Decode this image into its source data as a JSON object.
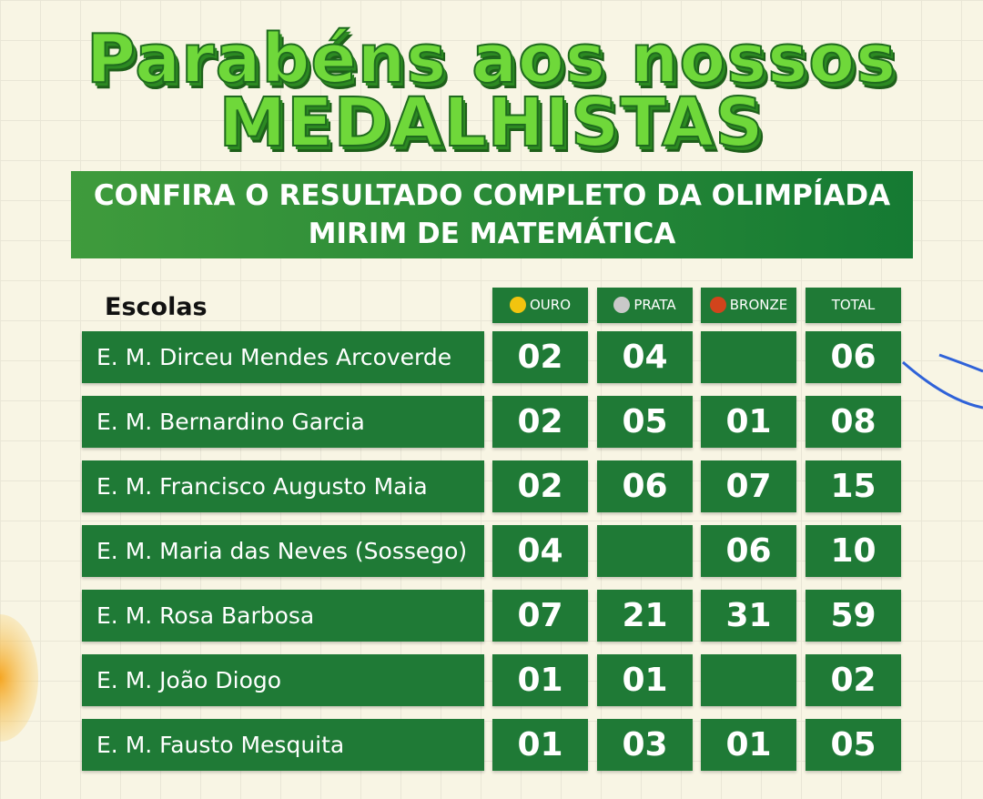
{
  "header": {
    "title_lines": [
      "Parabéns  aos nossos",
      "MEDALHISTAS"
    ],
    "banner_lines": [
      "CONFIRA O RESULTADO COMPLETO DA OLIMPÍADA",
      "MIRIM DE MATEMÁTICA"
    ]
  },
  "table": {
    "row_header": "Escolas",
    "columns": [
      {
        "label": "OURO",
        "dot": "#f2c40f"
      },
      {
        "label": "PRATA",
        "dot": "#c9c9c9"
      },
      {
        "label": "BRONZE",
        "dot": "#d2441c"
      },
      {
        "label": "TOTAL",
        "dot": null
      }
    ],
    "rows": [
      {
        "school": "E. M. Dirceu Mendes Arcoverde",
        "cells": [
          "02",
          "04",
          null,
          "06"
        ]
      },
      {
        "school": "E. M. Bernardino Garcia",
        "cells": [
          "02",
          "05",
          "01",
          "08"
        ]
      },
      {
        "school": "E. M. Francisco Augusto Maia",
        "cells": [
          "02",
          "06",
          "07",
          "15"
        ]
      },
      {
        "school": "E. M. Maria das Neves (Sossego)",
        "cells": [
          "04",
          null,
          "06",
          "10"
        ]
      },
      {
        "school": "E. M. Rosa Barbosa",
        "cells": [
          "07",
          "21",
          "31",
          "59"
        ]
      },
      {
        "school": "E. M. João Diogo",
        "cells": [
          "01",
          "01",
          null,
          "02"
        ]
      },
      {
        "school": "E. M. Fausto Mesquita",
        "cells": [
          "01",
          "03",
          "01",
          "05"
        ]
      }
    ]
  }
}
